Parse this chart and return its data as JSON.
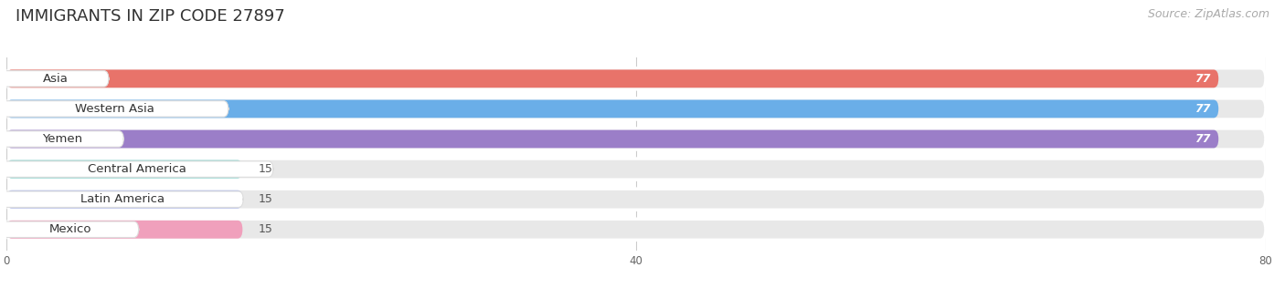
{
  "title": "IMMIGRANTS IN ZIP CODE 27897",
  "source": "Source: ZipAtlas.com",
  "categories": [
    "Asia",
    "Western Asia",
    "Yemen",
    "Central America",
    "Latin America",
    "Mexico"
  ],
  "values": [
    77,
    77,
    77,
    15,
    15,
    15
  ],
  "bar_colors": [
    "#E8736A",
    "#6AAEE8",
    "#9B7EC8",
    "#6ECCC4",
    "#A8B4E8",
    "#F0A0BC"
  ],
  "xlim": [
    0,
    80
  ],
  "xticks": [
    0,
    40,
    80
  ],
  "background_color": "#FFFFFF",
  "bar_bg_color": "#E8E8E8",
  "row_bg_color": "#F7F7F7",
  "title_fontsize": 13,
  "label_fontsize": 9.5,
  "value_fontsize": 9,
  "source_fontsize": 9
}
